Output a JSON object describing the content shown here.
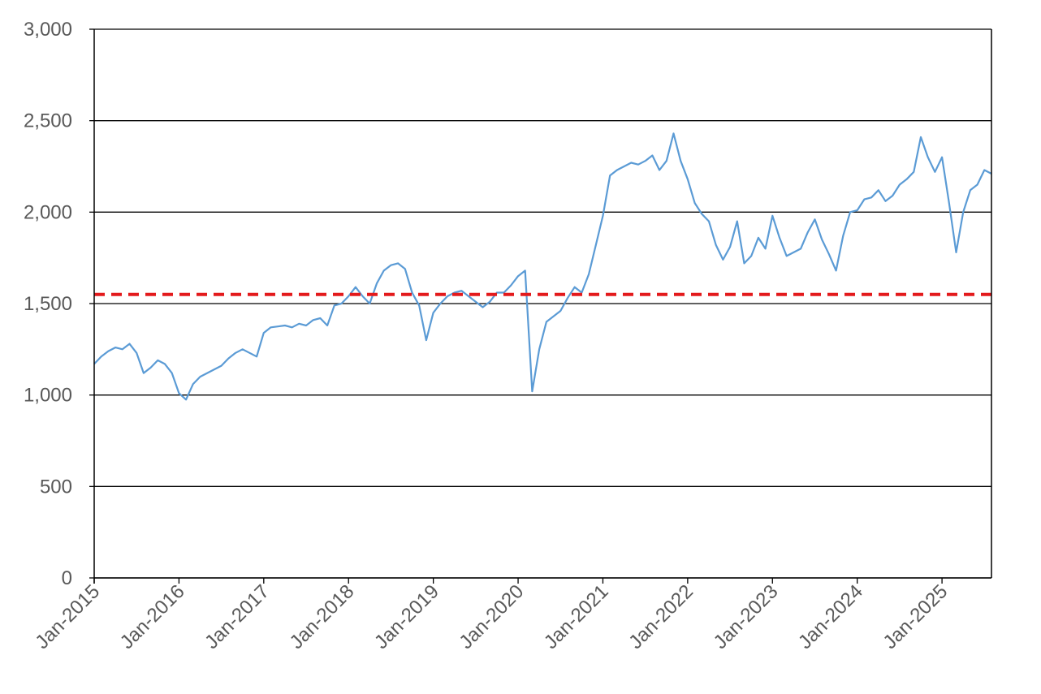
{
  "chart_data": {
    "type": "line",
    "title": "",
    "xlabel": "",
    "ylabel": "",
    "xlim": [
      "2015-01",
      "2025-08"
    ],
    "ylim": [
      0,
      3000
    ],
    "yticks": [
      "0",
      "500",
      "1,000",
      "1,500",
      "2,000",
      "2,500",
      "3,000"
    ],
    "xticks": [
      "Jan-2015",
      "Jan-2016",
      "Jan-2017",
      "Jan-2018",
      "Jan-2019",
      "Jan-2020",
      "Jan-2021",
      "Jan-2022",
      "Jan-2023",
      "Jan-2024",
      "Jan-2025"
    ],
    "grid": "horizontal",
    "legend": "none",
    "series": [
      {
        "color": "#5b9bd5",
        "x": [
          "2015-01",
          "2015-02",
          "2015-03",
          "2015-04",
          "2015-05",
          "2015-06",
          "2015-07",
          "2015-08",
          "2015-09",
          "2015-10",
          "2015-11",
          "2015-12",
          "2016-01",
          "2016-02",
          "2016-03",
          "2016-04",
          "2016-05",
          "2016-06",
          "2016-07",
          "2016-08",
          "2016-09",
          "2016-10",
          "2016-11",
          "2016-12",
          "2017-01",
          "2017-02",
          "2017-03",
          "2017-04",
          "2017-05",
          "2017-06",
          "2017-07",
          "2017-08",
          "2017-09",
          "2017-10",
          "2017-11",
          "2017-12",
          "2018-01",
          "2018-02",
          "2018-03",
          "2018-04",
          "2018-05",
          "2018-06",
          "2018-07",
          "2018-08",
          "2018-09",
          "2018-10",
          "2018-11",
          "2018-12",
          "2019-01",
          "2019-02",
          "2019-03",
          "2019-04",
          "2019-05",
          "2019-06",
          "2019-07",
          "2019-08",
          "2019-09",
          "2019-10",
          "2019-11",
          "2019-12",
          "2020-01",
          "2020-02",
          "2020-03",
          "2020-04",
          "2020-05",
          "2020-06",
          "2020-07",
          "2020-08",
          "2020-09",
          "2020-10",
          "2020-11",
          "2020-12",
          "2021-01",
          "2021-02",
          "2021-03",
          "2021-04",
          "2021-05",
          "2021-06",
          "2021-07",
          "2021-08",
          "2021-09",
          "2021-10",
          "2021-11",
          "2021-12",
          "2022-01",
          "2022-02",
          "2022-03",
          "2022-04",
          "2022-05",
          "2022-06",
          "2022-07",
          "2022-08",
          "2022-09",
          "2022-10",
          "2022-11",
          "2022-12",
          "2023-01",
          "2023-02",
          "2023-03",
          "2023-04",
          "2023-05",
          "2023-06",
          "2023-07",
          "2023-08",
          "2023-09",
          "2023-10",
          "2023-11",
          "2023-12",
          "2024-01",
          "2024-02",
          "2024-03",
          "2024-04",
          "2024-05",
          "2024-06",
          "2024-07",
          "2024-08",
          "2024-09",
          "2024-10",
          "2024-11",
          "2024-12",
          "2025-01",
          "2025-02",
          "2025-03",
          "2025-04",
          "2025-05",
          "2025-06",
          "2025-07",
          "2025-08"
        ],
        "values": [
          1170,
          1210,
          1240,
          1260,
          1250,
          1280,
          1230,
          1120,
          1150,
          1190,
          1170,
          1120,
          1010,
          975,
          1060,
          1100,
          1120,
          1140,
          1160,
          1200,
          1230,
          1250,
          1230,
          1210,
          1340,
          1370,
          1375,
          1380,
          1370,
          1390,
          1380,
          1410,
          1420,
          1380,
          1490,
          1500,
          1540,
          1590,
          1540,
          1500,
          1610,
          1680,
          1710,
          1720,
          1690,
          1560,
          1490,
          1300,
          1450,
          1500,
          1540,
          1560,
          1570,
          1540,
          1510,
          1480,
          1510,
          1560,
          1560,
          1600,
          1650,
          1680,
          1020,
          1250,
          1400,
          1430,
          1460,
          1530,
          1590,
          1560,
          1660,
          1820,
          1980,
          2200,
          2230,
          2250,
          2270,
          2260,
          2280,
          2310,
          2230,
          2280,
          2430,
          2280,
          2180,
          2050,
          1990,
          1950,
          1820,
          1740,
          1810,
          1950,
          1720,
          1760,
          1860,
          1800,
          1980,
          1860,
          1760,
          1780,
          1800,
          1890,
          1960,
          1850,
          1770,
          1680,
          1870,
          2000,
          2010,
          2070,
          2080,
          2120,
          2060,
          2090,
          2150,
          2180,
          2220,
          2410,
          2300,
          2220,
          2300,
          2050,
          1780,
          2000,
          2120,
          2150,
          2230,
          2210
        ]
      },
      {
        "color": "#e31a1c",
        "dashed": true,
        "x": [
          "2015-01",
          "2025-08"
        ],
        "values": [
          1550,
          1550
        ]
      }
    ]
  }
}
